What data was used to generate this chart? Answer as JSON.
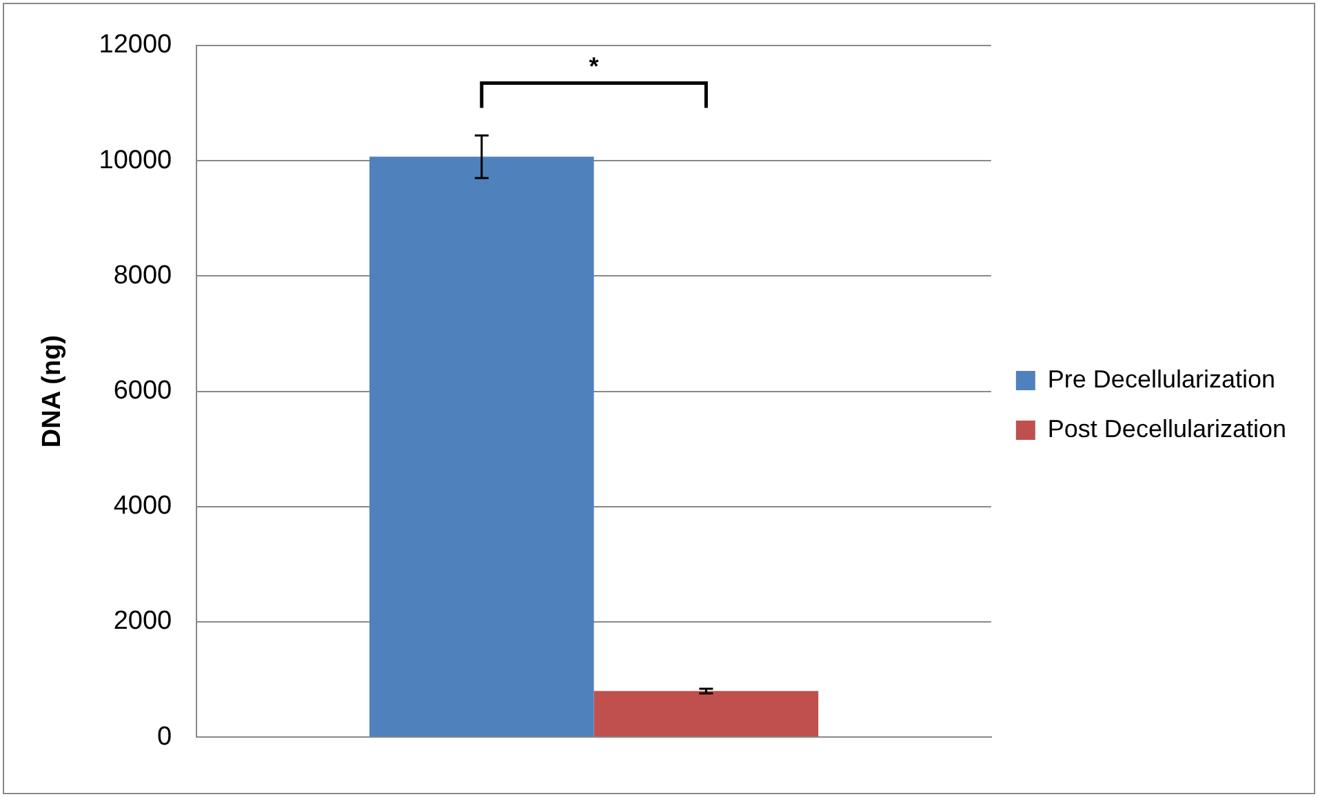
{
  "chart_data": {
    "type": "bar",
    "ylabel": "DNA (ng)",
    "categories": [
      null
    ],
    "series": [
      {
        "name": "Pre Decellularization",
        "color": "#4f81bd",
        "values": [
          10070
        ],
        "errors": [
          370
        ]
      },
      {
        "name": "Post Decellularization",
        "color": "#c0504d",
        "values": [
          800
        ],
        "errors": [
          40
        ]
      }
    ],
    "ylim": [
      0,
      12000
    ],
    "yticks": [
      0,
      2000,
      4000,
      6000,
      8000,
      10000,
      12000
    ],
    "grid": "y",
    "legend": "right",
    "annotations": [
      "*"
    ]
  }
}
